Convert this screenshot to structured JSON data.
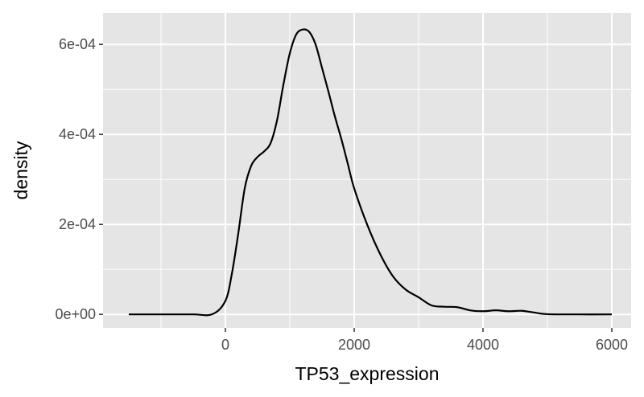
{
  "chart_data": {
    "type": "line",
    "title": "",
    "xlabel": "TP53_expression",
    "ylabel": "density",
    "xlim": [
      -1900,
      6300
    ],
    "ylim": [
      -3e-05,
      0.00067
    ],
    "x_ticks": [
      0,
      2000,
      4000,
      6000
    ],
    "x_tick_labels": [
      "0",
      "2000",
      "4000",
      "6000"
    ],
    "y_ticks": [
      0,
      0.0002,
      0.0004,
      0.0006
    ],
    "y_tick_labels": [
      "0e+00",
      "2e-04",
      "4e-04",
      "6e-04"
    ],
    "grid": true,
    "legend": "none",
    "colors": {
      "panel": "#e5e5e5",
      "grid": "#ffffff",
      "line": "#000000",
      "tick_text": "#4d4d4d"
    },
    "series": [
      {
        "x": [
          -1500,
          -1000,
          -500,
          -200,
          0,
          100,
          200,
          300,
          400,
          500,
          600,
          700,
          800,
          900,
          1000,
          1100,
          1200,
          1300,
          1400,
          1500,
          1600,
          1700,
          1800,
          1900,
          2000,
          2200,
          2400,
          2600,
          2800,
          3000,
          3200,
          3400,
          3600,
          3800,
          4000,
          4200,
          4400,
          4600,
          4800,
          5000,
          5500,
          6000
        ],
        "y": [
          0,
          0,
          0,
          5e-07,
          3e-05,
          9e-05,
          0.00018,
          0.00028,
          0.00033,
          0.00035,
          0.000362,
          0.00038,
          0.00043,
          0.00051,
          0.00058,
          0.000622,
          0.000633,
          0.000628,
          0.0006,
          0.000548,
          0.000495,
          0.00044,
          0.00039,
          0.000335,
          0.00028,
          0.0002,
          0.000135,
          8.5e-05,
          5.5e-05,
          3.8e-05,
          2e-05,
          1.7e-05,
          1.6e-05,
          9e-06,
          7e-06,
          9e-06,
          7e-06,
          8e-06,
          4e-06,
          5e-07,
          0,
          0
        ]
      }
    ]
  }
}
